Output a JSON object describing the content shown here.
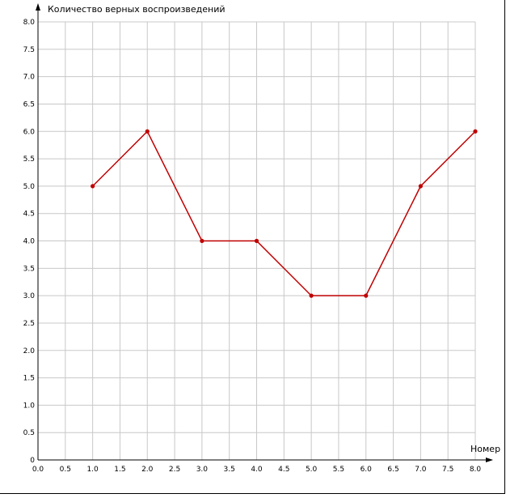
{
  "chart_data": {
    "type": "line",
    "ylabel": "Количество верных воспроизведений",
    "xlabel": "Номер",
    "xlim": [
      0,
      8
    ],
    "ylim": [
      0,
      8
    ],
    "x_ticks": [
      "0.0",
      "0.5",
      "1.0",
      "1.5",
      "2.0",
      "2.5",
      "3.0",
      "3.5",
      "4.0",
      "4.5",
      "5.0",
      "5.5",
      "6.0",
      "6.5",
      "7.0",
      "7.5",
      "8.0"
    ],
    "y_ticks": [
      "0",
      "0.5",
      "1.0",
      "1.5",
      "2.0",
      "2.5",
      "3.0",
      "3.5",
      "4.0",
      "4.5",
      "5.0",
      "5.5",
      "6.0",
      "6.5",
      "7.0",
      "7.5",
      "8.0"
    ],
    "grid": true,
    "series": [
      {
        "x": [
          1,
          2,
          3,
          4,
          5,
          6,
          7,
          8
        ],
        "values": [
          5,
          6,
          4,
          4,
          3,
          3,
          5,
          6
        ],
        "color": "#c00000"
      }
    ]
  }
}
